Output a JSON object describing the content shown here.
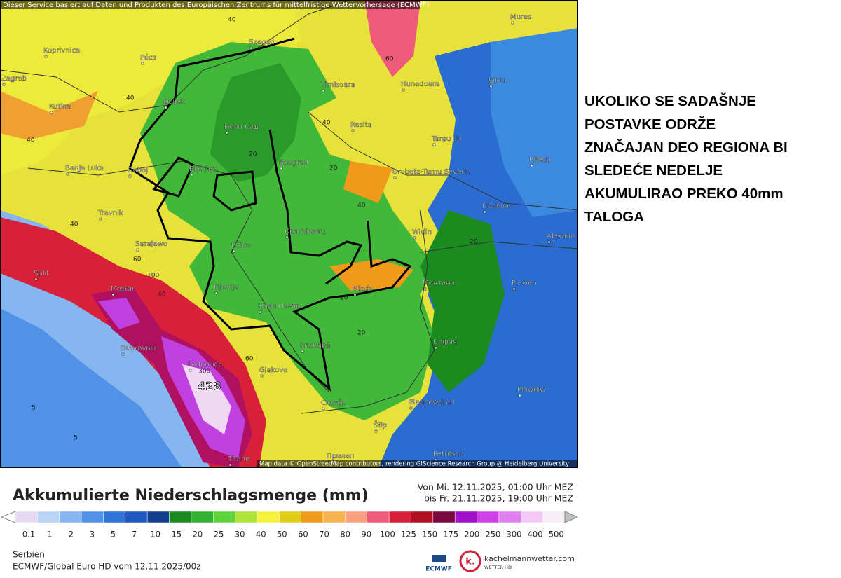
{
  "header": {
    "notice": "Dieser Service basiert auf Daten und Produkten des Europäischen Zentrums für mittelfristige Wettervorhersage (ECMWF)",
    "attribution": "Map data © OpenStreetMap contributors, rendering GIScience Research Group @ Heidelberg University"
  },
  "map": {
    "places": [
      "Koprivnica",
      "Pécs",
      "Szeged",
      "Mures",
      "Zagreb",
      "Osijek",
      "Timisoara",
      "Hunedoara",
      "Sibiu",
      "Kutina",
      "Нови Сад",
      "Resita",
      "Targu Jiu",
      "Banja Luka",
      "Doboj",
      "Bijeljina",
      "Beograd",
      "Drobeta-Turnu Severin",
      "Pitesti",
      "Travnik",
      "Craiova",
      "Крагујевац",
      "Widin",
      "Alexand",
      "Sarajewo",
      "Užice",
      "Split",
      "Mostar",
      "Pljevlja",
      "Nisch",
      "Монтана",
      "Plewen",
      "Нови Пазар",
      "Dubrovnik",
      "Prishtinë",
      "София",
      "Podgorica",
      "Gjakove",
      "Скопје",
      "Blagoewgrad",
      "Plowdiw",
      "Štip",
      "Tirane",
      "Прилеп",
      "Petritsch"
    ],
    "contour_labels": [
      40,
      40,
      40,
      60,
      40,
      40,
      20,
      20,
      40,
      20,
      40,
      60,
      100,
      20,
      20,
      60,
      300,
      5,
      5
    ],
    "max_label": "428"
  },
  "annotation": {
    "lines": [
      "UKOLIKO SE SADAŠNJE",
      "POSTAVKE ODRŽE",
      "ZNAČAJAN DEO REGIONA BI",
      "SLEDEĆE NEDELJE",
      "AKUMULIRAO PREKO 40mm",
      "TALOGA"
    ]
  },
  "legend": {
    "title": "Akkumulierte Niederschlagsmenge (mm)",
    "period_from": "Von Mi. 12.11.2025, 01:00 Uhr MEZ",
    "period_to": "bis Fr. 21.11.2025, 19:00 Uhr MEZ",
    "ticks": [
      "0.1",
      "1",
      "2",
      "3",
      "5",
      "7",
      "10",
      "15",
      "20",
      "25",
      "30",
      "40",
      "50",
      "60",
      "70",
      "80",
      "90",
      "100",
      "125",
      "150",
      "175",
      "200",
      "250",
      "300",
      "400",
      "500"
    ],
    "colors": [
      "#e6d9f2",
      "#b9d4f5",
      "#86b6f0",
      "#4f92e8",
      "#2f74d8",
      "#1f58c0",
      "#123e8e",
      "#1b8a1f",
      "#31b231",
      "#5ed23a",
      "#aee43c",
      "#f4f23a",
      "#e2cc1a",
      "#f09a1a",
      "#f6b24c",
      "#f8a080",
      "#f05a7a",
      "#d8203a",
      "#b01020",
      "#7a0a40",
      "#a010c8",
      "#d040e8",
      "#e080f0",
      "#f4c8f4",
      "#f8eef8"
    ],
    "arrow_low": "#ffffff",
    "arrow_high": "#c0c0c0"
  },
  "footer": {
    "region": "Serbien",
    "model": "ECMWF/Global Euro HD vom  12.11.2025/00z",
    "logo_left": "ECMWF",
    "logo_right": "kachelmannwetter.com",
    "logo_right_sub": "WETTER HD",
    "logo_mark": "k."
  }
}
